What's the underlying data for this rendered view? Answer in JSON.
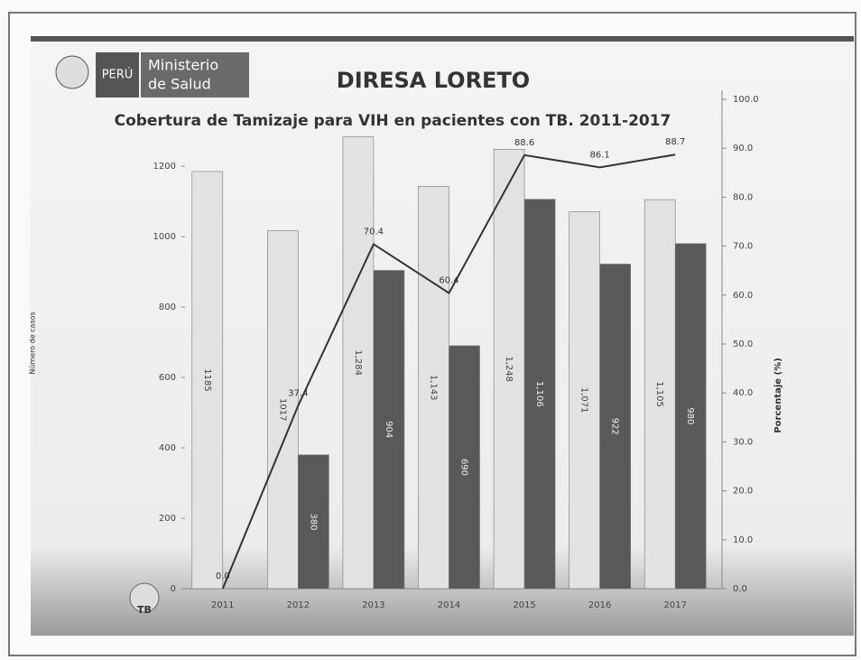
{
  "header": {
    "logo_country": "PERÚ",
    "logo_line1": "Ministerio",
    "logo_line2": "de Salud"
  },
  "footer": {
    "logo": "TB"
  },
  "chart_data": {
    "type": "bar",
    "title": "DIRESA LORETO",
    "subtitle": "Cobertura de Tamizaje para VIH en pacientes con TB. 2011-2017",
    "ylabel": "Número de casos",
    "y2label": "Porcentaje (%)",
    "categories": [
      "2011",
      "2012",
      "2013",
      "2014",
      "2015",
      "2016",
      "2017"
    ],
    "series": [
      {
        "color": "#e2e2e2",
        "values": [
          1185,
          1017,
          1284,
          1143,
          1248,
          1071,
          1105
        ],
        "value_labels": [
          "1185",
          "1017",
          "1,284",
          "1,143",
          "1,248",
          "1,071",
          "1,105"
        ]
      },
      {
        "color": "#595959",
        "values": [
          0,
          380,
          904,
          690,
          1106,
          922,
          980
        ],
        "value_labels": [
          null,
          "380",
          "904",
          "690",
          "1,106",
          "922",
          "980"
        ]
      },
      {
        "type": "line",
        "axis": "y2",
        "color": "#333333",
        "values": [
          0.0,
          37.4,
          70.4,
          60.4,
          88.6,
          86.1,
          88.7
        ],
        "value_labels": [
          "0.0",
          "37.4",
          "70.4",
          "60.4",
          "88.6",
          "86.1",
          "88.7"
        ]
      }
    ],
    "ylim": [
      0,
      1390
    ],
    "yticks": [
      0,
      200,
      400,
      600,
      800,
      1000,
      1200
    ],
    "y2lim": [
      0,
      100
    ],
    "y2ticks": [
      {
        "value": 0,
        "label": "0.0"
      },
      {
        "value": 10,
        "label": "10.0"
      },
      {
        "value": 20,
        "label": "20.0"
      },
      {
        "value": 30,
        "label": "30.0"
      },
      {
        "value": 40,
        "label": "40.0"
      },
      {
        "value": 50,
        "label": "50.0"
      },
      {
        "value": 60,
        "label": "60.0"
      },
      {
        "value": 70,
        "label": "70.0"
      },
      {
        "value": 80,
        "label": "80.0"
      },
      {
        "value": 90,
        "label": "90.0"
      },
      {
        "value": 100,
        "label": "100.0"
      }
    ]
  }
}
